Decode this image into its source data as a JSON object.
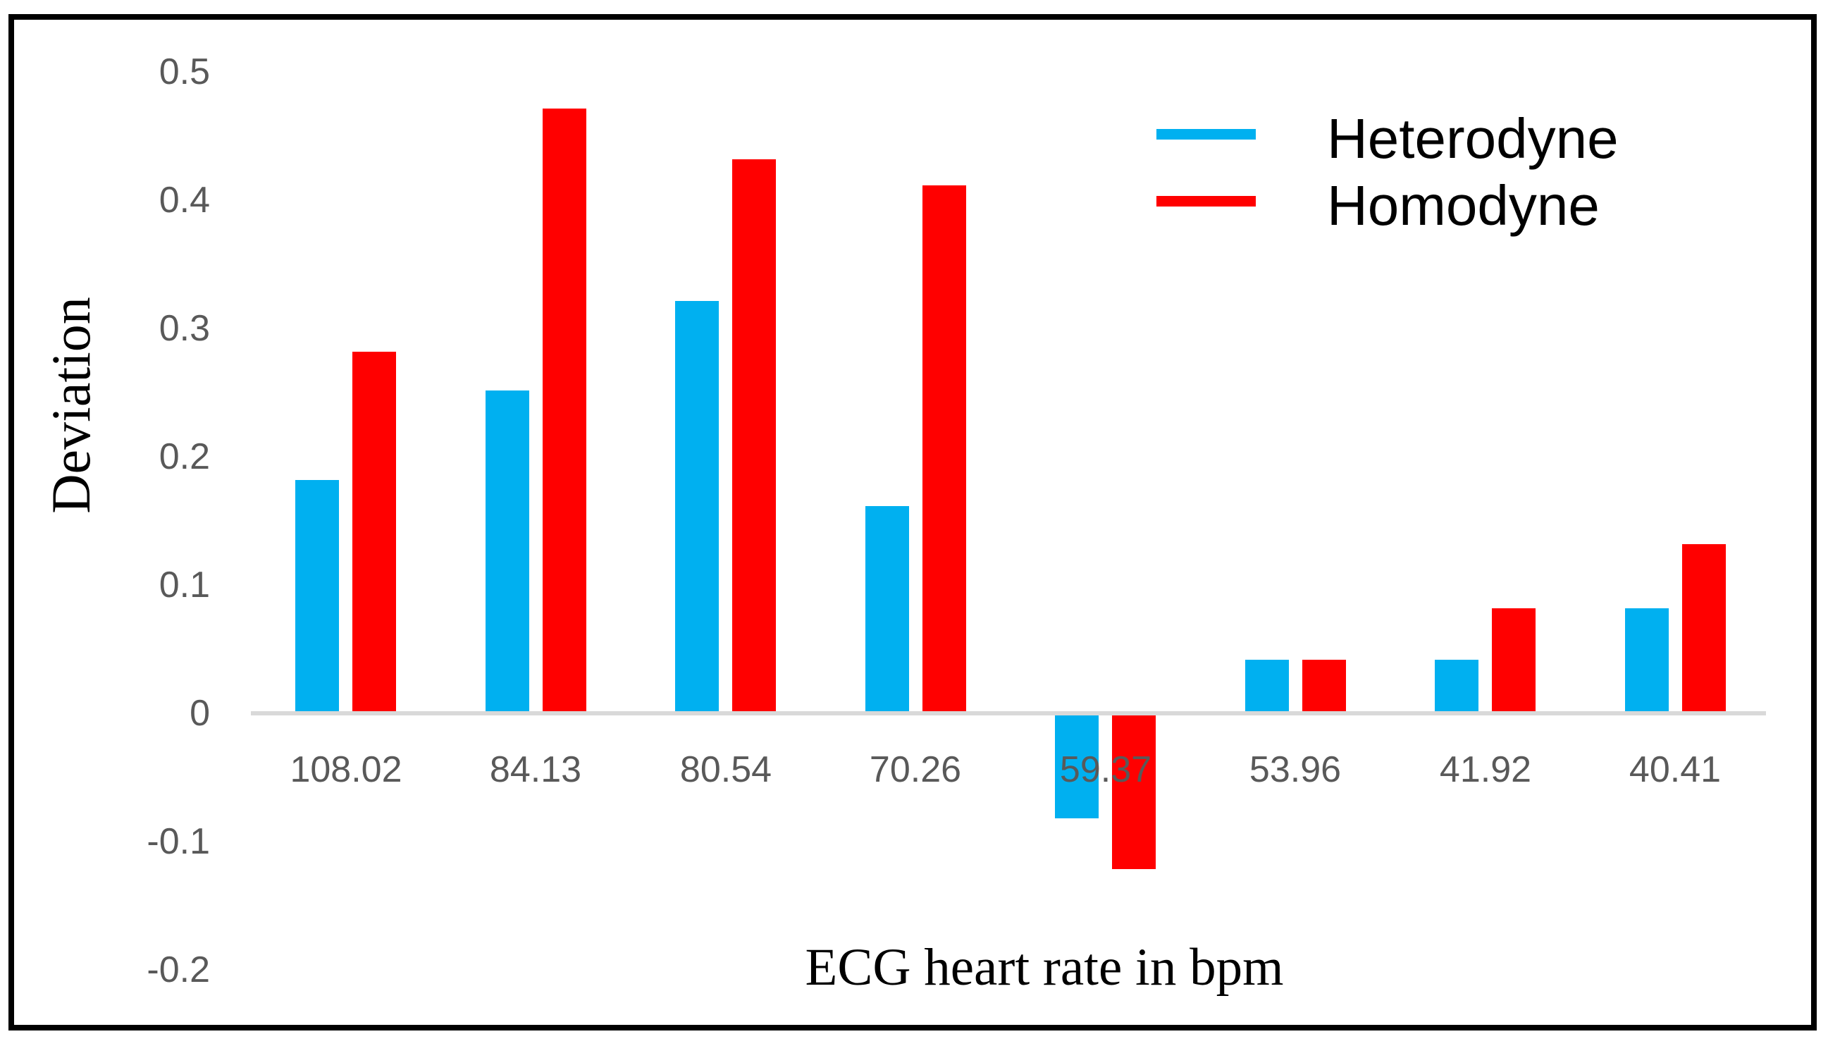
{
  "chart_data": {
    "type": "bar",
    "title": "",
    "categories": [
      "108.02",
      "84.13",
      "80.54",
      "70.26",
      "59.37",
      "53.96",
      "41.92",
      "40.41"
    ],
    "series": [
      {
        "name": "Heterodyne",
        "color": "#00B0F0",
        "values": [
          0.18,
          0.25,
          0.32,
          0.16,
          -0.08,
          0.04,
          0.04,
          0.08
        ]
      },
      {
        "name": "Homodyne",
        "color": "#FF0000",
        "values": [
          0.28,
          0.47,
          0.43,
          0.41,
          -0.12,
          0.04,
          0.08,
          0.13
        ]
      }
    ],
    "xlabel": "ECG heart rate in bpm",
    "ylabel": "Deviation",
    "ylim": [
      -0.2,
      0.5
    ],
    "ytick_interval": 0.1,
    "yticks": [
      "0.5",
      "0.4",
      "0.3",
      "0.2",
      "0.1",
      "0",
      "-0.1",
      "-0.2"
    ],
    "grid": false,
    "legend_position": "top-right"
  },
  "colors": {
    "heterodyne": "#00B0F0",
    "homodyne": "#FF0000",
    "axis_line": "#D9D9D9",
    "tick_label": "#595959",
    "title_text": "#000000",
    "frame": "#000000"
  }
}
